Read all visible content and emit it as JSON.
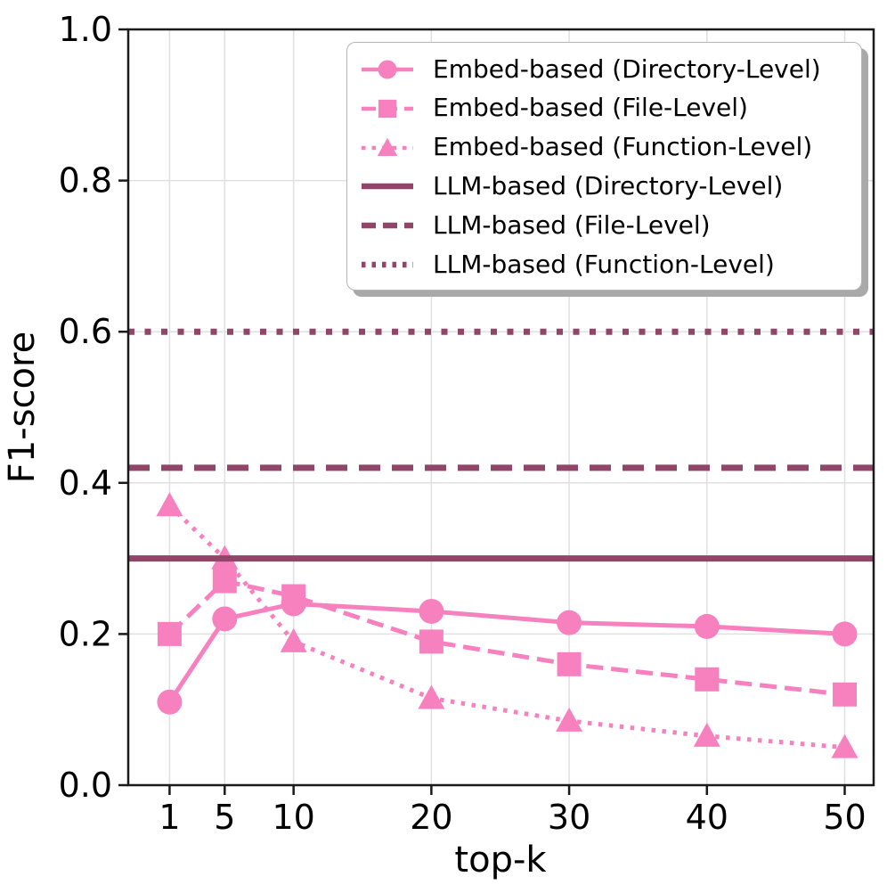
{
  "colors": {
    "embed_pink": "#f781bf",
    "llm_plum": "#904569",
    "grid": "#e0e0e0",
    "spine": "#1a1a1a",
    "text": "#000000",
    "legend_border": "#b5b5b5",
    "legend_shadow": "#a9a9a9",
    "background": "#ffffff"
  },
  "axes": {
    "xlabel": "top-k",
    "ylabel": "F1-score",
    "xtick_values": [
      1,
      5,
      10,
      20,
      30,
      40,
      50
    ],
    "xtick_labels": [
      "1",
      "5",
      "10",
      "20",
      "30",
      "40",
      "50"
    ],
    "ytick_values": [
      0.0,
      0.2,
      0.4,
      0.6,
      0.8,
      1.0
    ],
    "ytick_labels": [
      "0.0",
      "0.2",
      "0.4",
      "0.6",
      "0.8",
      "1.0"
    ],
    "xlim": [
      -2,
      52.1
    ],
    "ylim": [
      0.0,
      1.0
    ],
    "grid": "on"
  },
  "chart_data": {
    "type": "line",
    "title": "",
    "xlabel": "top-k",
    "ylabel": "F1-score",
    "x": [
      1,
      5,
      10,
      20,
      30,
      40,
      50
    ],
    "xlim": [
      -2,
      52.1
    ],
    "ylim": [
      0.0,
      1.0
    ],
    "legend_position": "upper right",
    "series": [
      {
        "id": "embed-directory",
        "name": "Embed-based (Directory-Level)",
        "style": "solid",
        "marker": "circle",
        "color_key": "embed_pink",
        "values": [
          0.11,
          0.22,
          0.24,
          0.23,
          0.215,
          0.21,
          0.2
        ]
      },
      {
        "id": "embed-file",
        "name": "Embed-based (File-Level)",
        "style": "dashed",
        "marker": "square",
        "color_key": "embed_pink",
        "values": [
          0.2,
          0.27,
          0.25,
          0.19,
          0.16,
          0.14,
          0.12
        ]
      },
      {
        "id": "embed-function",
        "name": "Embed-based (Function-Level)",
        "style": "dotted",
        "marker": "triangle",
        "color_key": "embed_pink",
        "values": [
          0.37,
          0.3,
          0.19,
          0.115,
          0.085,
          0.065,
          0.05
        ]
      },
      {
        "id": "llm-directory",
        "name": "LLM-based (Directory-Level)",
        "style": "solid",
        "marker": "none",
        "color_key": "llm_plum",
        "hline": 0.3
      },
      {
        "id": "llm-file",
        "name": "LLM-based (File-Level)",
        "style": "dashed",
        "marker": "none",
        "color_key": "llm_plum",
        "hline": 0.42
      },
      {
        "id": "llm-function",
        "name": "LLM-based (Function-Level)",
        "style": "dotted",
        "marker": "none",
        "color_key": "llm_plum",
        "hline": 0.6
      }
    ]
  }
}
